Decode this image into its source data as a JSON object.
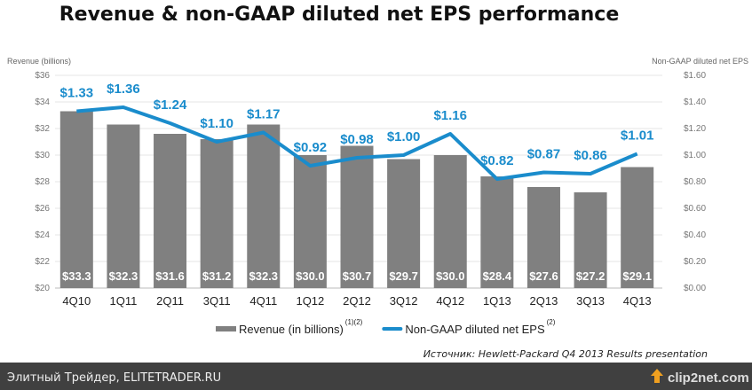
{
  "chart_data": {
    "type": "bar+line",
    "title": "Revenue & non-GAAP diluted net EPS performance",
    "ylabel": "Revenue (billions)",
    "y2label": "Non-GAAP diluted net EPS",
    "ylim": [
      20,
      36
    ],
    "y2lim": [
      0,
      1.6
    ],
    "yticks": [
      "$20",
      "$22",
      "$24",
      "$26",
      "$28",
      "$30",
      "$32",
      "$34",
      "$36"
    ],
    "y2ticks": [
      "$0.00",
      "$0.20",
      "$0.40",
      "$0.60",
      "$0.80",
      "$1.00",
      "$1.20",
      "$1.40",
      "$1.60"
    ],
    "categories": [
      "4Q10",
      "1Q11",
      "2Q11",
      "3Q11",
      "4Q11",
      "1Q12",
      "2Q12",
      "3Q12",
      "4Q12",
      "1Q13",
      "2Q13",
      "3Q13",
      "4Q13"
    ],
    "series": [
      {
        "name": "Revenue (in billions)",
        "sup": "(1)(2)",
        "type": "bar",
        "color": "#808080",
        "values": [
          33.3,
          32.3,
          31.6,
          31.2,
          32.3,
          30.0,
          30.7,
          29.7,
          30.0,
          28.4,
          27.6,
          27.2,
          29.1
        ],
        "labels": [
          "$33.3",
          "$32.3",
          "$31.6",
          "$31.2",
          "$32.3",
          "$30.0",
          "$30.7",
          "$29.7",
          "$30.0",
          "$28.4",
          "$27.6",
          "$27.2",
          "$29.1"
        ]
      },
      {
        "name": "Non-GAAP diluted net EPS",
        "sup": "(2)",
        "type": "line",
        "color": "#1a8ccc",
        "values": [
          1.33,
          1.36,
          1.24,
          1.1,
          1.17,
          0.92,
          0.98,
          1.0,
          1.16,
          0.82,
          0.87,
          0.86,
          1.01
        ],
        "labels": [
          "$1.33",
          "$1.36",
          "$1.24",
          "$1.10",
          "$1.17",
          "$0.92",
          "$0.98",
          "$1.00",
          "$1.16",
          "$0.82",
          "$0.87",
          "$0.86",
          "$1.01"
        ]
      }
    ],
    "legend": "bottom",
    "grid": true
  },
  "source": "Источник: Hewlett-Packard Q4 2013 Results presentation",
  "footer": {
    "left": "Элитный Трейдер, ELITETRADER.RU",
    "logo": "clip2net.com"
  }
}
